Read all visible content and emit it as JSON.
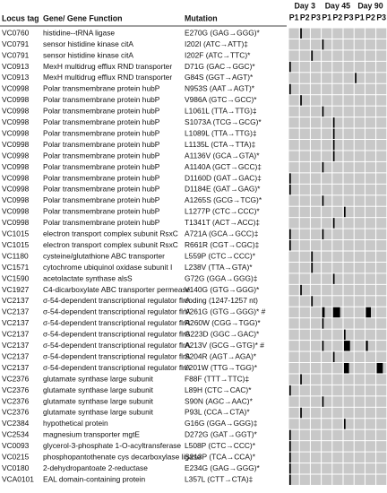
{
  "header": {
    "locus_tag": "Locus tag",
    "gene_function": "Gene/ Gene Function",
    "mutation": "Mutation",
    "days": [
      "Day 3",
      "Day 45",
      "Day 90"
    ],
    "passages": [
      "P1",
      "P2",
      "P3"
    ]
  },
  "rows": [
    [
      "VC0760",
      "histidine--tRNA ligase",
      "E270G (GAG→GGG)*",
      [
        null,
        15,
        null,
        null,
        null,
        null,
        null,
        null,
        null
      ]
    ],
    [
      "VC0791",
      "sensor histidine kinase citA",
      "I202I (ATC→ATT)‡",
      [
        null,
        null,
        null,
        15,
        null,
        null,
        null,
        null,
        null
      ]
    ],
    [
      "VC0791",
      "sensor histidine kinase citA",
      "I202F (ATC→TTC)*",
      [
        null,
        null,
        15,
        null,
        null,
        null,
        null,
        null,
        null
      ]
    ],
    [
      "VC0913",
      "MexH multidrug efflux RND transporter",
      "D71G (GAC→GGC)*",
      [
        15,
        null,
        null,
        null,
        null,
        null,
        null,
        null,
        null
      ]
    ],
    [
      "VC0913",
      "MexH multidrug efflux RND transporter",
      "G84S (GGT→AGT)*",
      [
        null,
        null,
        null,
        null,
        null,
        null,
        15,
        null,
        null
      ]
    ],
    [
      "VC0998",
      "Polar transmembrane protein hubP",
      "N953S (AAT→AGT)*",
      [
        15,
        null,
        null,
        null,
        null,
        null,
        null,
        null,
        null
      ]
    ],
    [
      "VC0998",
      "Polar transmembrane protein hubP",
      "V986A (GTC→GCC)*",
      [
        null,
        15,
        null,
        null,
        null,
        null,
        null,
        null,
        null
      ]
    ],
    [
      "VC0998",
      "Polar transmembrane protein hubP",
      "L1061L (TTA→TTG)‡",
      [
        null,
        null,
        null,
        15,
        null,
        null,
        null,
        null,
        null
      ]
    ],
    [
      "VC0998",
      "Polar transmembrane protein hubP",
      "S1073A (TCG→GCG)*",
      [
        null,
        null,
        null,
        null,
        15,
        null,
        null,
        null,
        null
      ]
    ],
    [
      "VC0998",
      "Polar transmembrane protein hubP",
      "L1089L (TTA→TTG)‡",
      [
        null,
        null,
        null,
        null,
        15,
        null,
        null,
        null,
        null
      ]
    ],
    [
      "VC0998",
      "Polar transmembrane protein hubP",
      "L1135L (CTA→TTA)‡",
      [
        null,
        null,
        null,
        null,
        15,
        null,
        null,
        null,
        null
      ]
    ],
    [
      "VC0998",
      "Polar transmembrane protein hubP",
      "A1136V (GCA→GTA)*",
      [
        null,
        null,
        null,
        null,
        15,
        null,
        null,
        null,
        null
      ]
    ],
    [
      "VC0998",
      "Polar transmembrane protein hubP",
      "A1140A (GCT→GCC)‡",
      [
        null,
        null,
        null,
        15,
        null,
        null,
        null,
        null,
        null
      ]
    ],
    [
      "VC0998",
      "Polar transmembrane protein hubP",
      "D1160D (GAT→GAC)‡",
      [
        15,
        null,
        null,
        null,
        null,
        null,
        null,
        null,
        null
      ]
    ],
    [
      "VC0998",
      "Polar transmembrane protein hubP",
      "D1184E (GAT→GAG)*",
      [
        15,
        null,
        null,
        null,
        null,
        null,
        null,
        null,
        null
      ]
    ],
    [
      "VC0998",
      "Polar transmembrane protein hubP",
      "A1265S (GCG→TCG)*",
      [
        null,
        null,
        null,
        15,
        null,
        null,
        null,
        null,
        null
      ]
    ],
    [
      "VC0998",
      "Polar transmembrane protein hubP",
      "L1277P (CTC→CCC)*",
      [
        null,
        null,
        null,
        null,
        null,
        15,
        null,
        null,
        null
      ]
    ],
    [
      "VC0998",
      "Polar transmembrane protein hubP",
      "T1341T (ACT→ACC)‡",
      [
        null,
        null,
        null,
        null,
        15,
        null,
        null,
        null,
        null
      ]
    ],
    [
      "VC1015",
      "electron transport complex subunit RsxC",
      "A721A (GCA→GCC)‡",
      [
        15,
        null,
        null,
        15,
        null,
        null,
        null,
        null,
        null
      ]
    ],
    [
      "VC1015",
      "electron transport complex subunit RsxC",
      "R661R (CGT→CGC)‡",
      [
        15,
        null,
        null,
        null,
        null,
        null,
        null,
        null,
        null
      ]
    ],
    [
      "VC1180",
      "cysteine/glutathione ABC transporter",
      "L559P (CTC→CCC)*",
      [
        null,
        null,
        15,
        null,
        null,
        null,
        null,
        null,
        null
      ]
    ],
    [
      "VC1571",
      "cytochrome ubiquinol oxidase subunit I",
      "L238V (TTA→GTA)*",
      [
        null,
        null,
        15,
        null,
        null,
        null,
        null,
        null,
        null
      ]
    ],
    [
      "VC1590",
      "acetolactate synthase alsS",
      "G72G (GGA→GGG)‡",
      [
        null,
        null,
        null,
        null,
        15,
        null,
        null,
        null,
        null
      ]
    ],
    [
      "VC1927",
      "C4-dicarboxylate ABC transporter permease",
      "V140G (GTG→GGG)*",
      [
        null,
        15,
        null,
        null,
        null,
        null,
        null,
        null,
        null
      ]
    ],
    [
      "VC2137",
      "σ-54-dependent transcriptional regulator flrA",
      "coding (1247-1257 nt)",
      [
        null,
        null,
        15,
        null,
        null,
        null,
        null,
        null,
        null
      ]
    ],
    [
      "VC2137",
      "σ-54-dependent transcriptional regulator flrA",
      "V261G (GTG→GGG)* #",
      [
        null,
        null,
        null,
        25,
        70,
        null,
        null,
        50,
        null
      ]
    ],
    [
      "VC2137",
      "σ-54-dependent transcriptional regulator flrA",
      "R260W (CGG→TGG)*",
      [
        null,
        null,
        null,
        15,
        null,
        null,
        null,
        null,
        null
      ]
    ],
    [
      "VC2137",
      "σ-54-dependent transcriptional regulator flrA",
      "G223D (GGC→GAC)*",
      [
        null,
        null,
        null,
        null,
        null,
        15,
        null,
        null,
        null
      ]
    ],
    [
      "VC2137",
      "σ-54-dependent transcriptional regulator flrA",
      "A213V (GCG→GTG)* #",
      [
        null,
        null,
        null,
        15,
        null,
        60,
        null,
        20,
        null
      ]
    ],
    [
      "VC2137",
      "σ-54-dependent transcriptional regulator flrA",
      "S204R (AGT→AGA)*",
      [
        null,
        null,
        null,
        null,
        15,
        null,
        null,
        null,
        null
      ]
    ],
    [
      "VC2137",
      "σ-54-dependent transcriptional regulator flrA",
      "L201W (TTG→TGG)*",
      [
        null,
        null,
        null,
        null,
        null,
        50,
        null,
        null,
        60
      ]
    ],
    [
      "VC2376",
      "glutamate synthase large subunit",
      "F88F (TTT→TTC)‡",
      [
        null,
        15,
        null,
        null,
        null,
        null,
        null,
        null,
        null
      ]
    ],
    [
      "VC2376",
      "glutamate synthase large subunit",
      "L89H (CTC→CAC)*",
      [
        15,
        null,
        null,
        null,
        null,
        null,
        null,
        null,
        null
      ]
    ],
    [
      "VC2376",
      "glutamate synthase large subunit",
      "S90N (AGC→AAC)*",
      [
        null,
        null,
        null,
        15,
        null,
        null,
        null,
        null,
        null
      ]
    ],
    [
      "VC2376",
      "glutamate synthase large subunit",
      "P93L (CCA→CTA)*",
      [
        null,
        15,
        null,
        null,
        null,
        null,
        null,
        null,
        null
      ]
    ],
    [
      "VC2384",
      "hypothetical protein",
      "G16G (GGA→GGG)‡",
      [
        null,
        null,
        null,
        null,
        null,
        15,
        null,
        null,
        null
      ]
    ],
    [
      "VC2534",
      "magnesium transporter mgtE",
      "D272G (GAT→GGT)*",
      [
        15,
        null,
        null,
        null,
        null,
        null,
        null,
        null,
        null
      ]
    ],
    [
      "VC0093",
      "glycerol-3-phosphate 1-O-acyltransferase",
      "L508P (CTC→CCC)*",
      [
        15,
        null,
        null,
        null,
        null,
        null,
        null,
        null,
        null
      ]
    ],
    [
      "VC0215",
      "phosphopantothenate cys decarboxylase ligase",
      "S213P (TCA→CCA)*",
      [
        15,
        null,
        null,
        null,
        null,
        null,
        null,
        null,
        null
      ]
    ],
    [
      "VC0180",
      "2-dehydropantoate 2-reductase",
      "E234G (GAG→GGG)*",
      [
        15,
        null,
        null,
        null,
        null,
        null,
        null,
        null,
        null
      ]
    ],
    [
      "VCA0101",
      "EAL domain-containing protein",
      "L357L (CTT→CTA)‡",
      [
        15,
        null,
        null,
        null,
        null,
        null,
        null,
        null,
        null
      ]
    ]
  ]
}
